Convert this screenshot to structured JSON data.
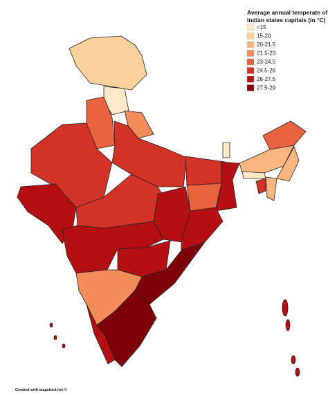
{
  "legend": {
    "title": [
      "Average annual temperate of",
      "Indian states capitals (in °C)"
    ],
    "items": [
      {
        "label": "<15",
        "color": "#fde9c9"
      },
      {
        "label": "15-20",
        "color": "#fcd09a"
      },
      {
        "label": "20-21.5",
        "color": "#fbb57e"
      },
      {
        "label": "21.5-23",
        "color": "#f48c5c"
      },
      {
        "label": "23-24.5",
        "color": "#e9633f"
      },
      {
        "label": "24.5-26",
        "color": "#d33227"
      },
      {
        "label": "26-27.5",
        "color": "#b50f14"
      },
      {
        "label": "27.5-29",
        "color": "#7e0108"
      }
    ]
  },
  "footer": "Created with mapchart.net ©"
}
